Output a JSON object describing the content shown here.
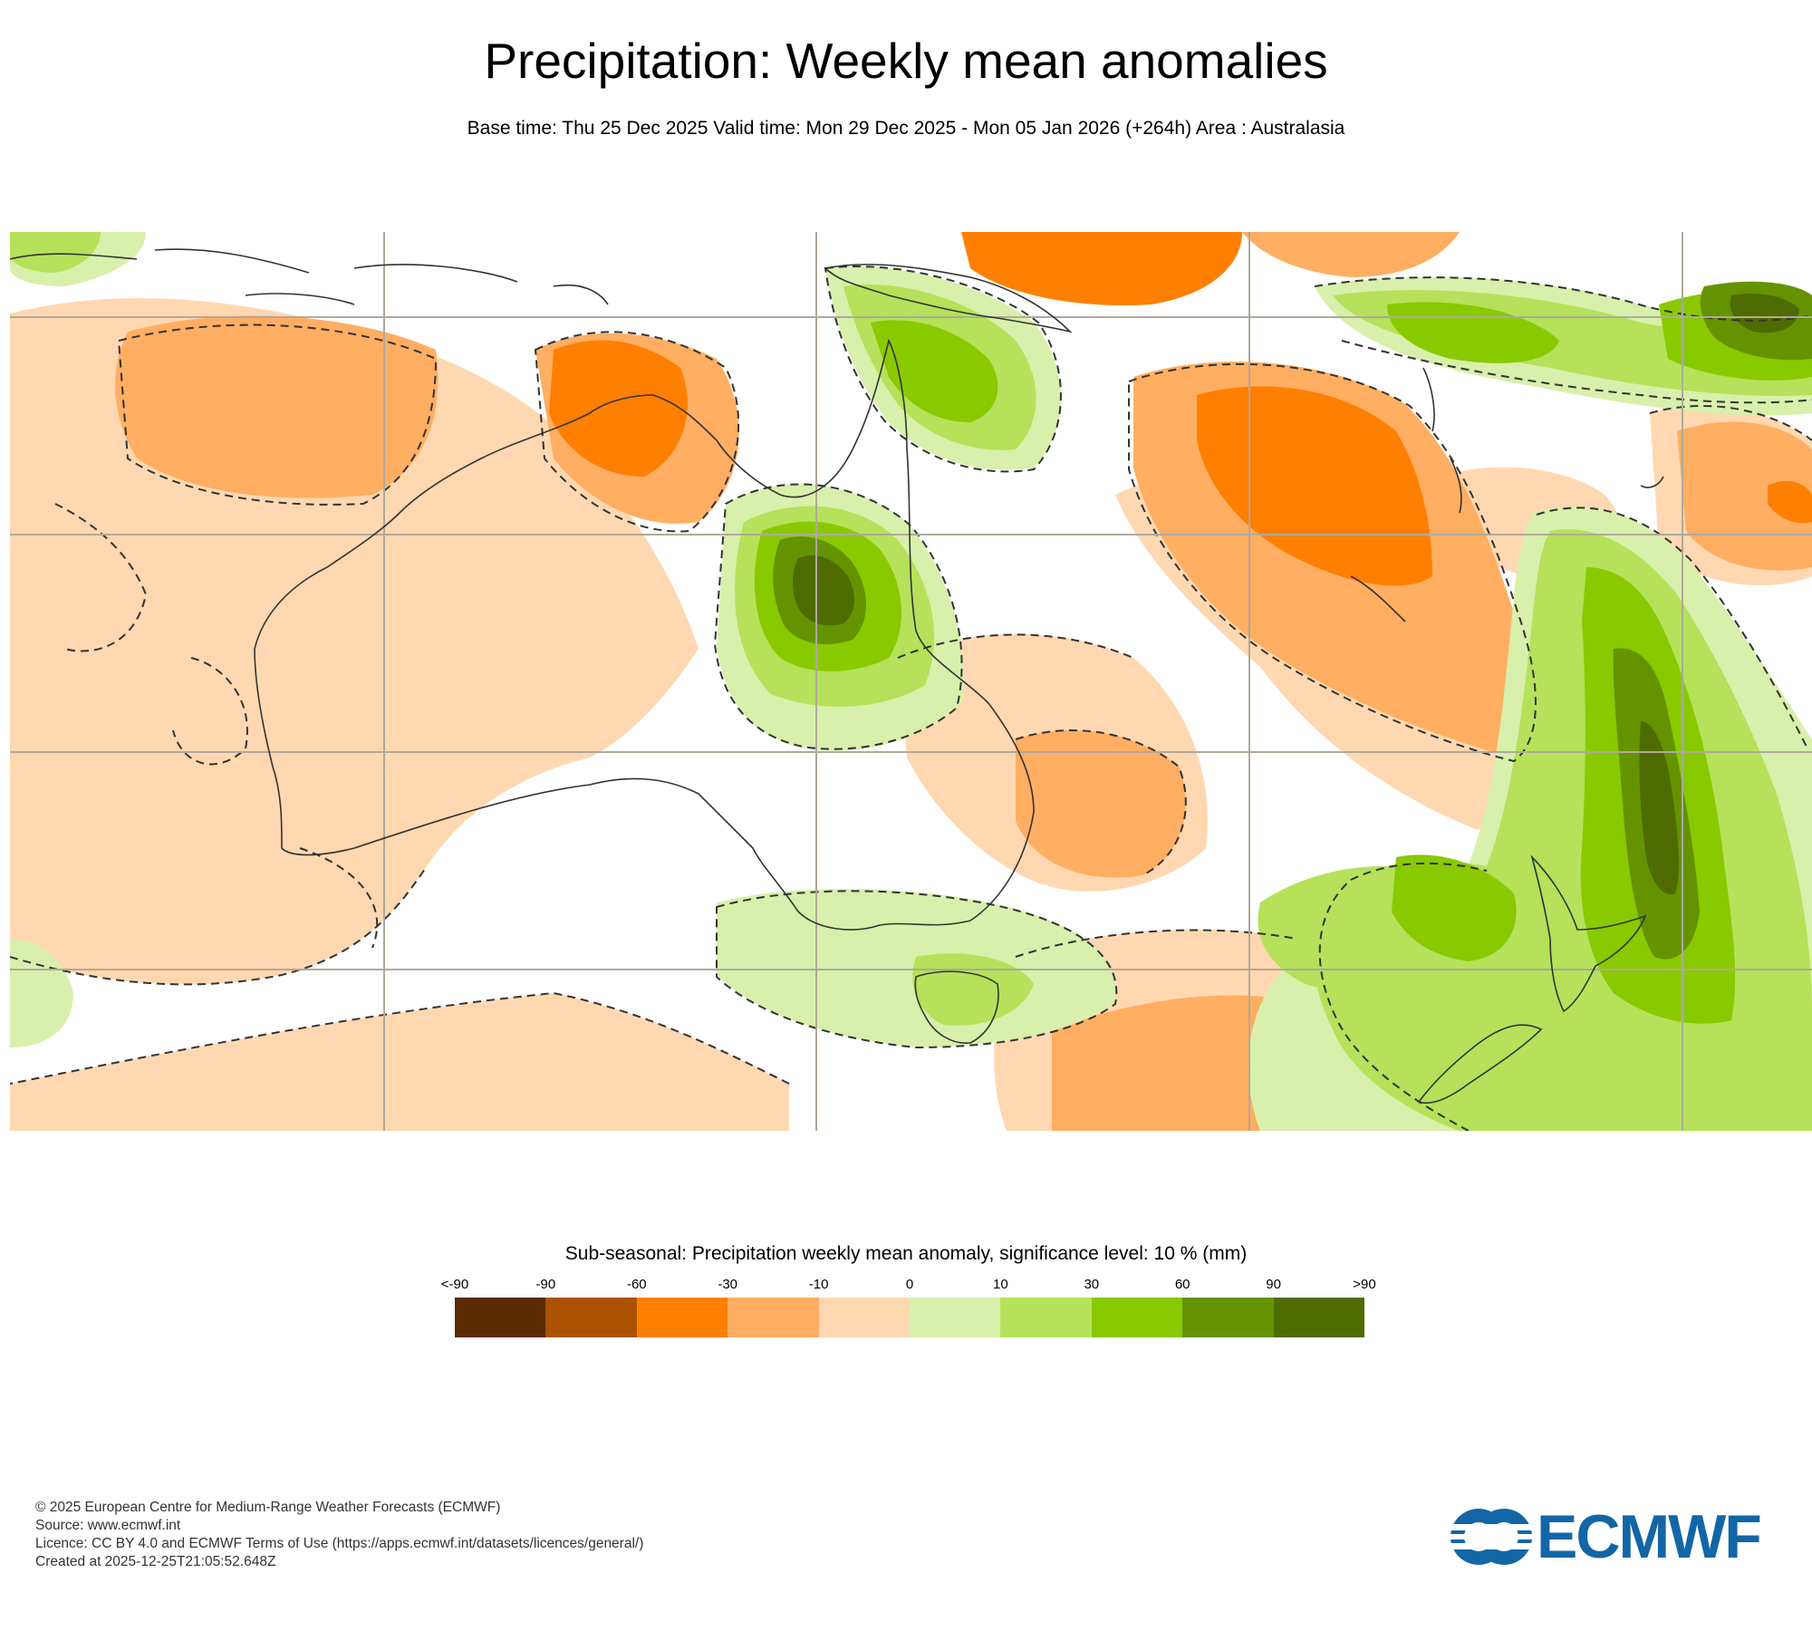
{
  "header": {
    "title": "Precipitation: Weekly mean anomalies",
    "subtitle": "Base time: Thu 25 Dec 2025 Valid time: Mon 29 Dec 2025 - Mon 05 Jan 2026 (+264h) Area : Australasia"
  },
  "legend": {
    "title": "Sub-seasonal: Precipitation weekly mean anomaly, significance level: 10 % (mm)",
    "labels": [
      "<-90",
      "-90",
      "-60",
      "-30",
      "-10",
      "0",
      "10",
      "30",
      "60",
      "90",
      ">90"
    ],
    "colors": [
      "#5a2a00",
      "#ab5200",
      "#ff7f00",
      "#ffae62",
      "#ffd8b1",
      "#d8f0ab",
      "#b5e25a",
      "#89c900",
      "#649300",
      "#4f6b00"
    ]
  },
  "map": {
    "ocean_color": "#ffffff",
    "grid_color": "#b1a89a",
    "coast_color": "#333333"
  },
  "footer": {
    "copyright": "© 2025 European Centre for Medium-Range Weather Forecasts (ECMWF)",
    "source": "Source: www.ecmwf.int",
    "licence": "Licence: CC BY 4.0 and ECMWF Terms of Use (https://apps.ecmwf.int/datasets/licences/general/)",
    "created": "Created at 2025-12-25T21:05:52.648Z"
  },
  "logo": {
    "text": "ECMWF",
    "color": "#1366a6"
  }
}
